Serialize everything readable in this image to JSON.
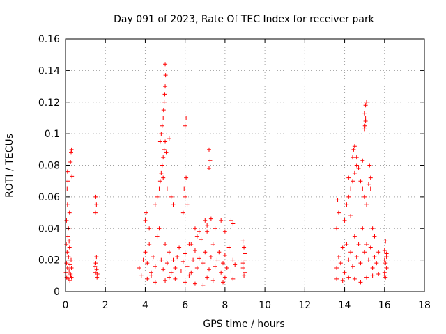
{
  "chart_data": {
    "type": "scatter",
    "title": "Day 091 of 2023, Rate Of TEC Index for receiver park",
    "xlabel": "GPS time / hours",
    "ylabel": "ROTI / TECUs",
    "xlim": [
      0,
      18
    ],
    "ylim": [
      0,
      0.16
    ],
    "x_ticks": [
      "0",
      "2",
      "4",
      "6",
      "8",
      "10",
      "12",
      "14",
      "16",
      "18"
    ],
    "y_ticks": [
      "0",
      "0.02",
      "0.04",
      "0.06",
      "0.08",
      "0.1",
      "0.12",
      "0.14",
      "0.16"
    ],
    "grid": true,
    "marker": "plus",
    "color": "#ff0000",
    "series": [
      {
        "points": [
          [
            0.02,
            0.012
          ],
          [
            0.05,
            0.018
          ],
          [
            0.08,
            0.025
          ],
          [
            0.1,
            0.015
          ],
          [
            0.12,
            0.035
          ],
          [
            0.15,
            0.022
          ],
          [
            0.18,
            0.013
          ],
          [
            0.2,
            0.028
          ],
          [
            0.22,
            0.017
          ],
          [
            0.25,
            0.011
          ],
          [
            0.28,
            0.02
          ],
          [
            0.3,
            0.015
          ],
          [
            0.05,
            0.045
          ],
          [
            0.1,
            0.055
          ],
          [
            0.08,
            0.065
          ],
          [
            0.12,
            0.07
          ],
          [
            0.1,
            0.076
          ],
          [
            0.2,
            0.05
          ],
          [
            0.25,
            0.082
          ],
          [
            0.28,
            0.088
          ],
          [
            0.3,
            0.09
          ],
          [
            0.32,
            0.073
          ],
          [
            0.15,
            0.04
          ],
          [
            0.18,
            0.032
          ],
          [
            0.06,
            0.009
          ],
          [
            0.14,
            0.008
          ],
          [
            0.22,
            0.007
          ],
          [
            0.26,
            0.01
          ],
          [
            0.3,
            0.009
          ],
          [
            0.04,
            0.03
          ],
          [
            1.5,
            0.012
          ],
          [
            1.52,
            0.018
          ],
          [
            1.55,
            0.022
          ],
          [
            1.58,
            0.009
          ],
          [
            1.5,
            0.05
          ],
          [
            1.55,
            0.055
          ],
          [
            1.52,
            0.06
          ],
          [
            1.56,
            0.014
          ],
          [
            1.6,
            0.011
          ],
          [
            1.48,
            0.016
          ],
          [
            3.7,
            0.015
          ],
          [
            3.8,
            0.01
          ],
          [
            3.9,
            0.02
          ],
          [
            4.0,
            0.025
          ],
          [
            4.1,
            0.018
          ],
          [
            4.2,
            0.03
          ],
          [
            4.3,
            0.012
          ],
          [
            4.4,
            0.022
          ],
          [
            4.5,
            0.016
          ],
          [
            4.6,
            0.035
          ],
          [
            4.7,
            0.04
          ],
          [
            4.8,
            0.02
          ],
          [
            4.9,
            0.014
          ],
          [
            5.0,
            0.03
          ],
          [
            5.1,
            0.018
          ],
          [
            5.2,
            0.025
          ],
          [
            5.3,
            0.012
          ],
          [
            5.4,
            0.02
          ],
          [
            5.5,
            0.015
          ],
          [
            5.6,
            0.022
          ],
          [
            5.7,
            0.028
          ],
          [
            5.8,
            0.013
          ],
          [
            5.9,
            0.019
          ],
          [
            6.0,
            0.024
          ],
          [
            6.1,
            0.016
          ],
          [
            6.2,
            0.03
          ],
          [
            6.3,
            0.012
          ],
          [
            6.4,
            0.02
          ],
          [
            6.5,
            0.026
          ],
          [
            6.6,
            0.015
          ],
          [
            6.7,
            0.021
          ],
          [
            6.8,
            0.033
          ],
          [
            6.9,
            0.018
          ],
          [
            7.0,
            0.025
          ],
          [
            7.1,
            0.038
          ],
          [
            7.2,
            0.014
          ],
          [
            7.3,
            0.022
          ],
          [
            7.4,
            0.03
          ],
          [
            7.5,
            0.016
          ],
          [
            7.6,
            0.02
          ],
          [
            7.7,
            0.025
          ],
          [
            7.8,
            0.012
          ],
          [
            7.9,
            0.018
          ],
          [
            8.0,
            0.023
          ],
          [
            8.1,
            0.015
          ],
          [
            8.2,
            0.028
          ],
          [
            8.3,
            0.013
          ],
          [
            8.4,
            0.02
          ],
          [
            8.5,
            0.017
          ],
          [
            4.0,
            0.045
          ],
          [
            4.05,
            0.05
          ],
          [
            4.2,
            0.04
          ],
          [
            4.5,
            0.055
          ],
          [
            4.6,
            0.06
          ],
          [
            4.7,
            0.065
          ],
          [
            4.75,
            0.07
          ],
          [
            4.8,
            0.075
          ],
          [
            4.85,
            0.08
          ],
          [
            4.9,
            0.085
          ],
          [
            4.95,
            0.09
          ],
          [
            5.0,
            0.095
          ],
          [
            4.75,
            0.095
          ],
          [
            4.8,
            0.1
          ],
          [
            4.85,
            0.105
          ],
          [
            4.9,
            0.11
          ],
          [
            4.92,
            0.115
          ],
          [
            4.95,
            0.12
          ],
          [
            4.98,
            0.125
          ],
          [
            5.0,
            0.13
          ],
          [
            5.02,
            0.137
          ],
          [
            5.0,
            0.144
          ],
          [
            5.05,
            0.088
          ],
          [
            5.2,
            0.097
          ],
          [
            5.3,
            0.06
          ],
          [
            5.4,
            0.055
          ],
          [
            5.1,
            0.065
          ],
          [
            4.9,
            0.072
          ],
          [
            6.0,
            0.105
          ],
          [
            6.05,
            0.11
          ],
          [
            6.0,
            0.06
          ],
          [
            5.95,
            0.065
          ],
          [
            6.1,
            0.055
          ],
          [
            5.9,
            0.05
          ],
          [
            6.05,
            0.072
          ],
          [
            6.3,
            0.03
          ],
          [
            6.5,
            0.04
          ],
          [
            6.6,
            0.035
          ],
          [
            6.7,
            0.038
          ],
          [
            7.2,
            0.09
          ],
          [
            7.25,
            0.083
          ],
          [
            7.2,
            0.078
          ],
          [
            7.0,
            0.045
          ],
          [
            7.1,
            0.042
          ],
          [
            7.3,
            0.046
          ],
          [
            7.5,
            0.04
          ],
          [
            7.8,
            0.045
          ],
          [
            8.0,
            0.038
          ],
          [
            8.3,
            0.045
          ],
          [
            8.4,
            0.043
          ],
          [
            8.9,
            0.032
          ],
          [
            8.95,
            0.028
          ],
          [
            9.0,
            0.02
          ],
          [
            8.9,
            0.015
          ],
          [
            9.0,
            0.012
          ],
          [
            8.95,
            0.01
          ],
          [
            9.0,
            0.024
          ],
          [
            8.9,
            0.018
          ],
          [
            4.1,
            0.008
          ],
          [
            4.5,
            0.006
          ],
          [
            5.0,
            0.007
          ],
          [
            5.5,
            0.008
          ],
          [
            6.0,
            0.006
          ],
          [
            6.5,
            0.005
          ],
          [
            6.9,
            0.004
          ],
          [
            7.4,
            0.007
          ],
          [
            7.9,
            0.006
          ],
          [
            8.4,
            0.008
          ],
          [
            4.3,
            0.01
          ],
          [
            5.2,
            0.009
          ],
          [
            6.2,
            0.01
          ],
          [
            7.1,
            0.009
          ],
          [
            8.0,
            0.009
          ],
          [
            13.6,
            0.015
          ],
          [
            13.7,
            0.022
          ],
          [
            13.8,
            0.018
          ],
          [
            13.9,
            0.028
          ],
          [
            14.0,
            0.012
          ],
          [
            14.1,
            0.03
          ],
          [
            14.2,
            0.02
          ],
          [
            14.3,
            0.025
          ],
          [
            14.4,
            0.016
          ],
          [
            14.5,
            0.035
          ],
          [
            14.6,
            0.022
          ],
          [
            14.7,
            0.03
          ],
          [
            14.8,
            0.018
          ],
          [
            14.9,
            0.04
          ],
          [
            15.0,
            0.025
          ],
          [
            15.1,
            0.03
          ],
          [
            15.2,
            0.02
          ],
          [
            15.3,
            0.028
          ],
          [
            15.4,
            0.015
          ],
          [
            15.5,
            0.022
          ],
          [
            15.6,
            0.018
          ],
          [
            15.7,
            0.025
          ],
          [
            13.6,
            0.04
          ],
          [
            13.7,
            0.05
          ],
          [
            13.65,
            0.058
          ],
          [
            14.0,
            0.045
          ],
          [
            14.1,
            0.055
          ],
          [
            14.2,
            0.06
          ],
          [
            14.3,
            0.065
          ],
          [
            14.4,
            0.07
          ],
          [
            14.5,
            0.075
          ],
          [
            14.6,
            0.08
          ],
          [
            14.4,
            0.085
          ],
          [
            14.45,
            0.09
          ],
          [
            14.5,
            0.092
          ],
          [
            14.6,
            0.085
          ],
          [
            14.7,
            0.078
          ],
          [
            14.8,
            0.07
          ],
          [
            14.9,
            0.065
          ],
          [
            15.0,
            0.06
          ],
          [
            15.1,
            0.055
          ],
          [
            15.2,
            0.068
          ],
          [
            15.3,
            0.072
          ],
          [
            15.25,
            0.08
          ],
          [
            15.3,
            0.065
          ],
          [
            15.4,
            0.04
          ],
          [
            15.5,
            0.035
          ],
          [
            14.2,
            0.072
          ],
          [
            14.9,
            0.083
          ],
          [
            14.3,
            0.048
          ],
          [
            15.0,
            0.103
          ],
          [
            15.02,
            0.105
          ],
          [
            15.05,
            0.108
          ],
          [
            15.0,
            0.113
          ],
          [
            15.05,
            0.118
          ],
          [
            15.1,
            0.12
          ],
          [
            15.05,
            0.11
          ],
          [
            13.6,
            0.008
          ],
          [
            13.9,
            0.007
          ],
          [
            14.2,
            0.009
          ],
          [
            14.5,
            0.008
          ],
          [
            14.8,
            0.006
          ],
          [
            15.1,
            0.009
          ],
          [
            15.4,
            0.01
          ],
          [
            15.7,
            0.011
          ],
          [
            16.0,
            0.012
          ],
          [
            16.05,
            0.018
          ],
          [
            16.1,
            0.022
          ],
          [
            16.0,
            0.026
          ],
          [
            16.05,
            0.032
          ],
          [
            16.1,
            0.015
          ],
          [
            16.0,
            0.01
          ],
          [
            16.05,
            0.009
          ],
          [
            16.1,
            0.024
          ],
          [
            16.0,
            0.02
          ]
        ]
      }
    ]
  }
}
